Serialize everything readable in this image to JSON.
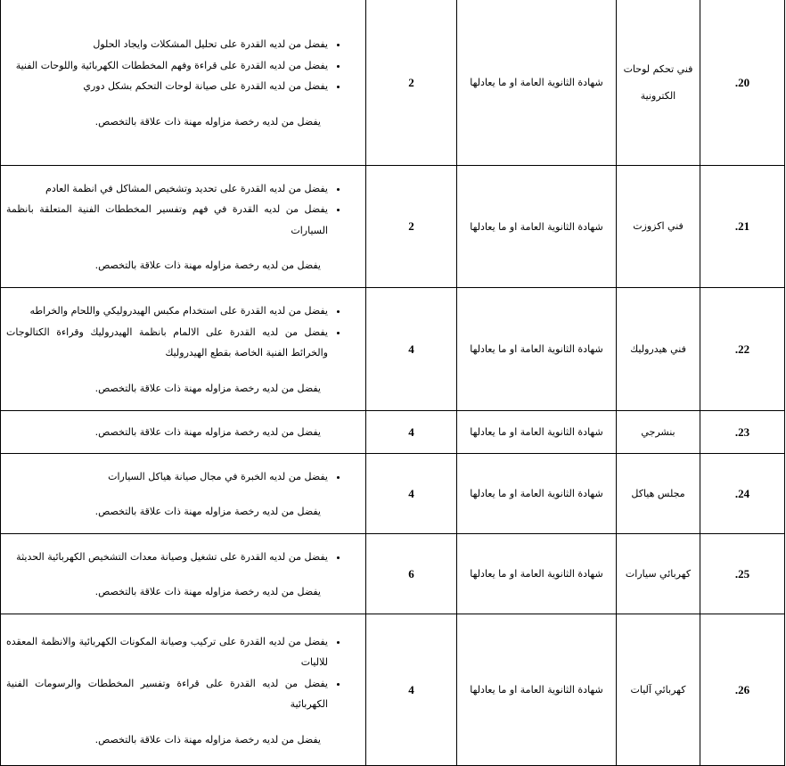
{
  "rows": [
    {
      "serial": "20.",
      "title": "فني تحكم لوحات الكترونية",
      "qualification": "شهادة الثانوية العامة او ما يعادلها",
      "count": "2",
      "requirements": [
        "يفضل من لديه القدرة على تحليل المشكلات وايجاد الحلول",
        "يفضل من لديه القدرة على قراءة وفهم المخططات الكهربائية واللوحات الفنية",
        "يفضل من لديه القدرة على صيانة لوحات التحكم بشكل دوري"
      ],
      "note": "يفضل من لديه رخصة مزاوله مهنة ذات علاقة بالتخصص."
    },
    {
      "serial": "21.",
      "title": "فني اكزوزت",
      "qualification": "شهادة الثانوية العامة او ما يعادلها",
      "count": "2",
      "requirements": [
        "يفضل من لديه القدرة على تحديد وتشخيص المشاكل في انظمة العادم",
        "يفضل من لديه القدرة في فهم وتفسير المخططات الفنية المتعلقة بانظمة السيارات"
      ],
      "note": "يفضل من لديه رخصة مزاوله مهنة ذات علاقة بالتخصص."
    },
    {
      "serial": "22.",
      "title": "فني هيدروليك",
      "qualification": "شهادة الثانوية العامة او ما يعادلها",
      "count": "4",
      "requirements": [
        "يفضل من لديه القدرة على استخدام مكبس الهيدروليكي واللحام والخراطه",
        "يفضل من لديه القدرة على الالمام بانظمة الهيدروليك وقراءة الكتالوجات والخرائط الفنية الخاصة بقطع الهيدروليك"
      ],
      "note": "يفضل من لديه رخصة مزاوله مهنة ذات علاقة بالتخصص."
    },
    {
      "serial": "23.",
      "title": "بنشرجي",
      "qualification": "شهادة الثانوية العامة او ما يعادلها",
      "count": "4",
      "requirements": [],
      "note": "يفضل من لديه رخصة مزاوله مهنة ذات علاقة بالتخصص."
    },
    {
      "serial": "24.",
      "title": "مجلس هياكل",
      "qualification": "شهادة الثانوية العامة او ما يعادلها",
      "count": "4",
      "requirements": [
        "يفضل من لديه الخبرة في مجال صيانة هياكل السيارات"
      ],
      "note": "يفضل من لديه رخصة مزاوله مهنة ذات علاقة بالتخصص."
    },
    {
      "serial": "25.",
      "title": "كهربائي سيارات",
      "qualification": "شهادة الثانوية العامة او ما يعادلها",
      "count": "6",
      "requirements": [
        "يفضل من لديه القدرة على تشغيل وصيانة معدات التشخيص الكهربائية الحديثة"
      ],
      "note": "يفضل من لديه رخصة مزاوله مهنة ذات علاقة بالتخصص."
    },
    {
      "serial": "26.",
      "title": "كهربائي آليات",
      "qualification": "شهادة الثانوية العامة او ما يعادلها",
      "count": "4",
      "requirements": [
        "يفضل من لديه القدرة على تركيب وصيانة المكونات الكهربائية والانظمة المعقده للاليات",
        "يفضل من لديه القدرة على قراءة وتفسير المخططات والرسومات الفنية الكهربائية"
      ],
      "note": "يفضل من لديه رخصة مزاوله مهنة ذات علاقة بالتخصص."
    }
  ]
}
